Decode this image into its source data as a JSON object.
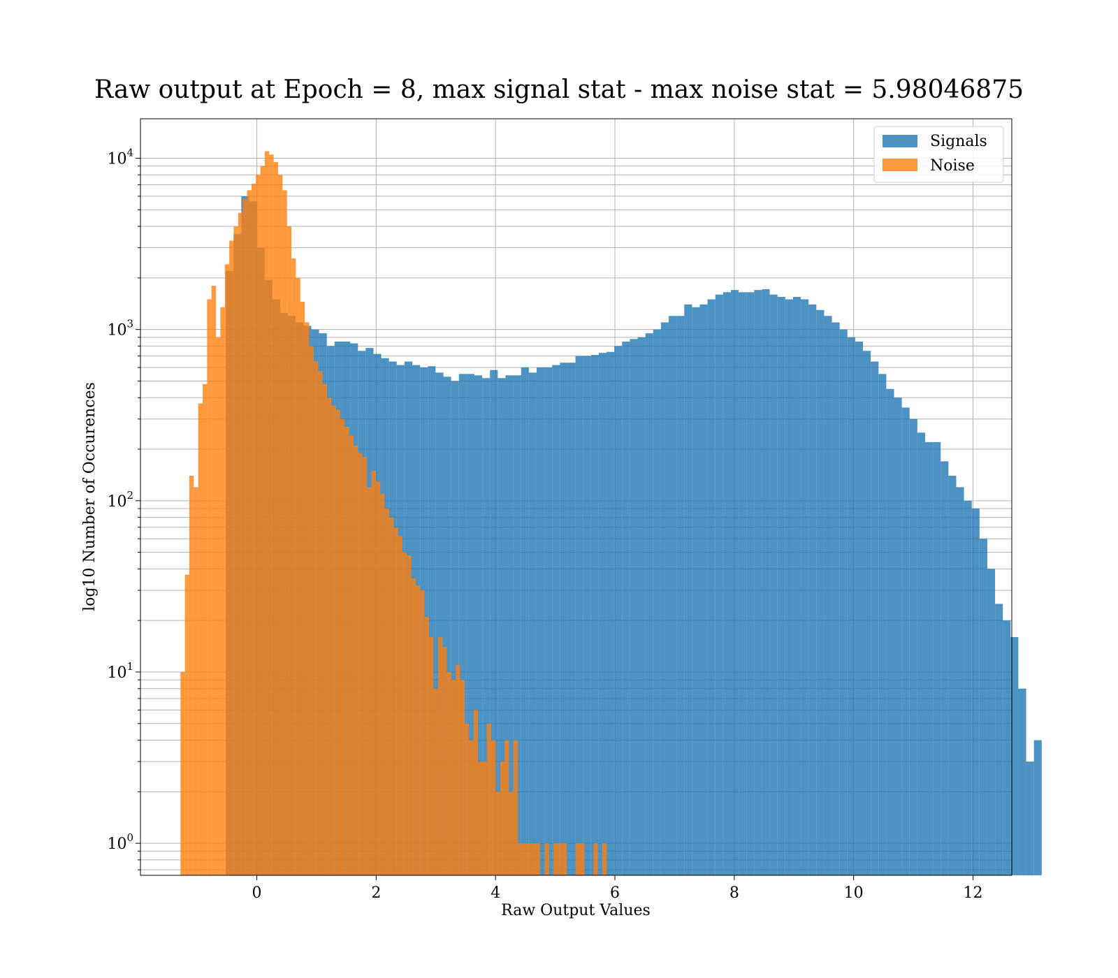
{
  "chart_data": {
    "type": "bar",
    "title": "Raw output at Epoch = 8, max signal stat - max noise stat = 5.98046875",
    "xlabel": "Raw Output Values",
    "ylabel": "log10 Number of Occurences",
    "xlim": [
      -1.95,
      12.65
    ],
    "ylim": [
      0.65,
      17000
    ],
    "yscale": "log",
    "grid": true,
    "legend_position": "upper-right",
    "xticks": [
      0,
      2,
      4,
      6,
      8,
      10,
      12
    ],
    "xtick_labels": [
      "0",
      "2",
      "4",
      "6",
      "8",
      "10",
      "12"
    ],
    "yticks": [
      1,
      10,
      100,
      1000,
      10000
    ],
    "ytick_labels": [
      {
        "base": "10",
        "exp": "0"
      },
      {
        "base": "10",
        "exp": "1"
      },
      {
        "base": "10",
        "exp": "2"
      },
      {
        "base": "10",
        "exp": "3"
      },
      {
        "base": "10",
        "exp": "4"
      }
    ],
    "series": [
      {
        "name": "Signals",
        "color": "#1f77b4",
        "x_start": -0.52,
        "bin_width": 0.1302,
        "values": [
          2200,
          3600,
          6000,
          5600,
          3000,
          1950,
          1500,
          1250,
          1200,
          1100,
          1050,
          1000,
          950,
          800,
          850,
          850,
          830,
          750,
          780,
          720,
          680,
          650,
          620,
          650,
          620,
          600,
          610,
          560,
          530,
          500,
          550,
          550,
          540,
          520,
          580,
          520,
          540,
          540,
          600,
          560,
          600,
          600,
          620,
          640,
          640,
          700,
          700,
          710,
          730,
          740,
          800,
          850,
          880,
          900,
          950,
          1000,
          1100,
          1200,
          1200,
          1400,
          1350,
          1400,
          1500,
          1600,
          1650,
          1700,
          1650,
          1650,
          1700,
          1720,
          1600,
          1550,
          1500,
          1550,
          1500,
          1400,
          1300,
          1200,
          1100,
          1000,
          900,
          850,
          750,
          650,
          550,
          450,
          400,
          350,
          300,
          250,
          220,
          220,
          170,
          140,
          120,
          100,
          90,
          60,
          40,
          25,
          20,
          16,
          8,
          3,
          4
        ],
        "show_zero_bins": false
      },
      {
        "name": "Noise",
        "color": "#ff7f0e",
        "x_start": -1.28,
        "bin_width": 0.0744,
        "values": [
          10,
          37,
          140,
          120,
          370,
          480,
          1500,
          1800,
          900,
          1350,
          2400,
          3300,
          4000,
          4800,
          5800,
          6500,
          7100,
          8000,
          9000,
          11000,
          10500,
          9500,
          8000,
          6500,
          4000,
          2600,
          2000,
          1450,
          1100,
          800,
          650,
          570,
          480,
          400,
          360,
          340,
          300,
          270,
          240,
          210,
          190,
          180,
          120,
          150,
          130,
          110,
          90,
          80,
          70,
          62,
          50,
          48,
          35,
          32,
          30,
          21,
          16,
          8,
          16,
          14,
          10,
          9,
          11,
          9,
          5,
          4,
          6,
          3,
          3,
          5,
          4,
          2,
          3,
          4,
          2,
          4,
          1,
          1,
          1,
          1,
          1,
          0,
          1,
          0,
          1,
          1,
          1,
          0,
          0,
          1,
          1,
          0,
          0,
          1,
          0,
          1
        ],
        "show_zero_bins": false
      }
    ]
  }
}
